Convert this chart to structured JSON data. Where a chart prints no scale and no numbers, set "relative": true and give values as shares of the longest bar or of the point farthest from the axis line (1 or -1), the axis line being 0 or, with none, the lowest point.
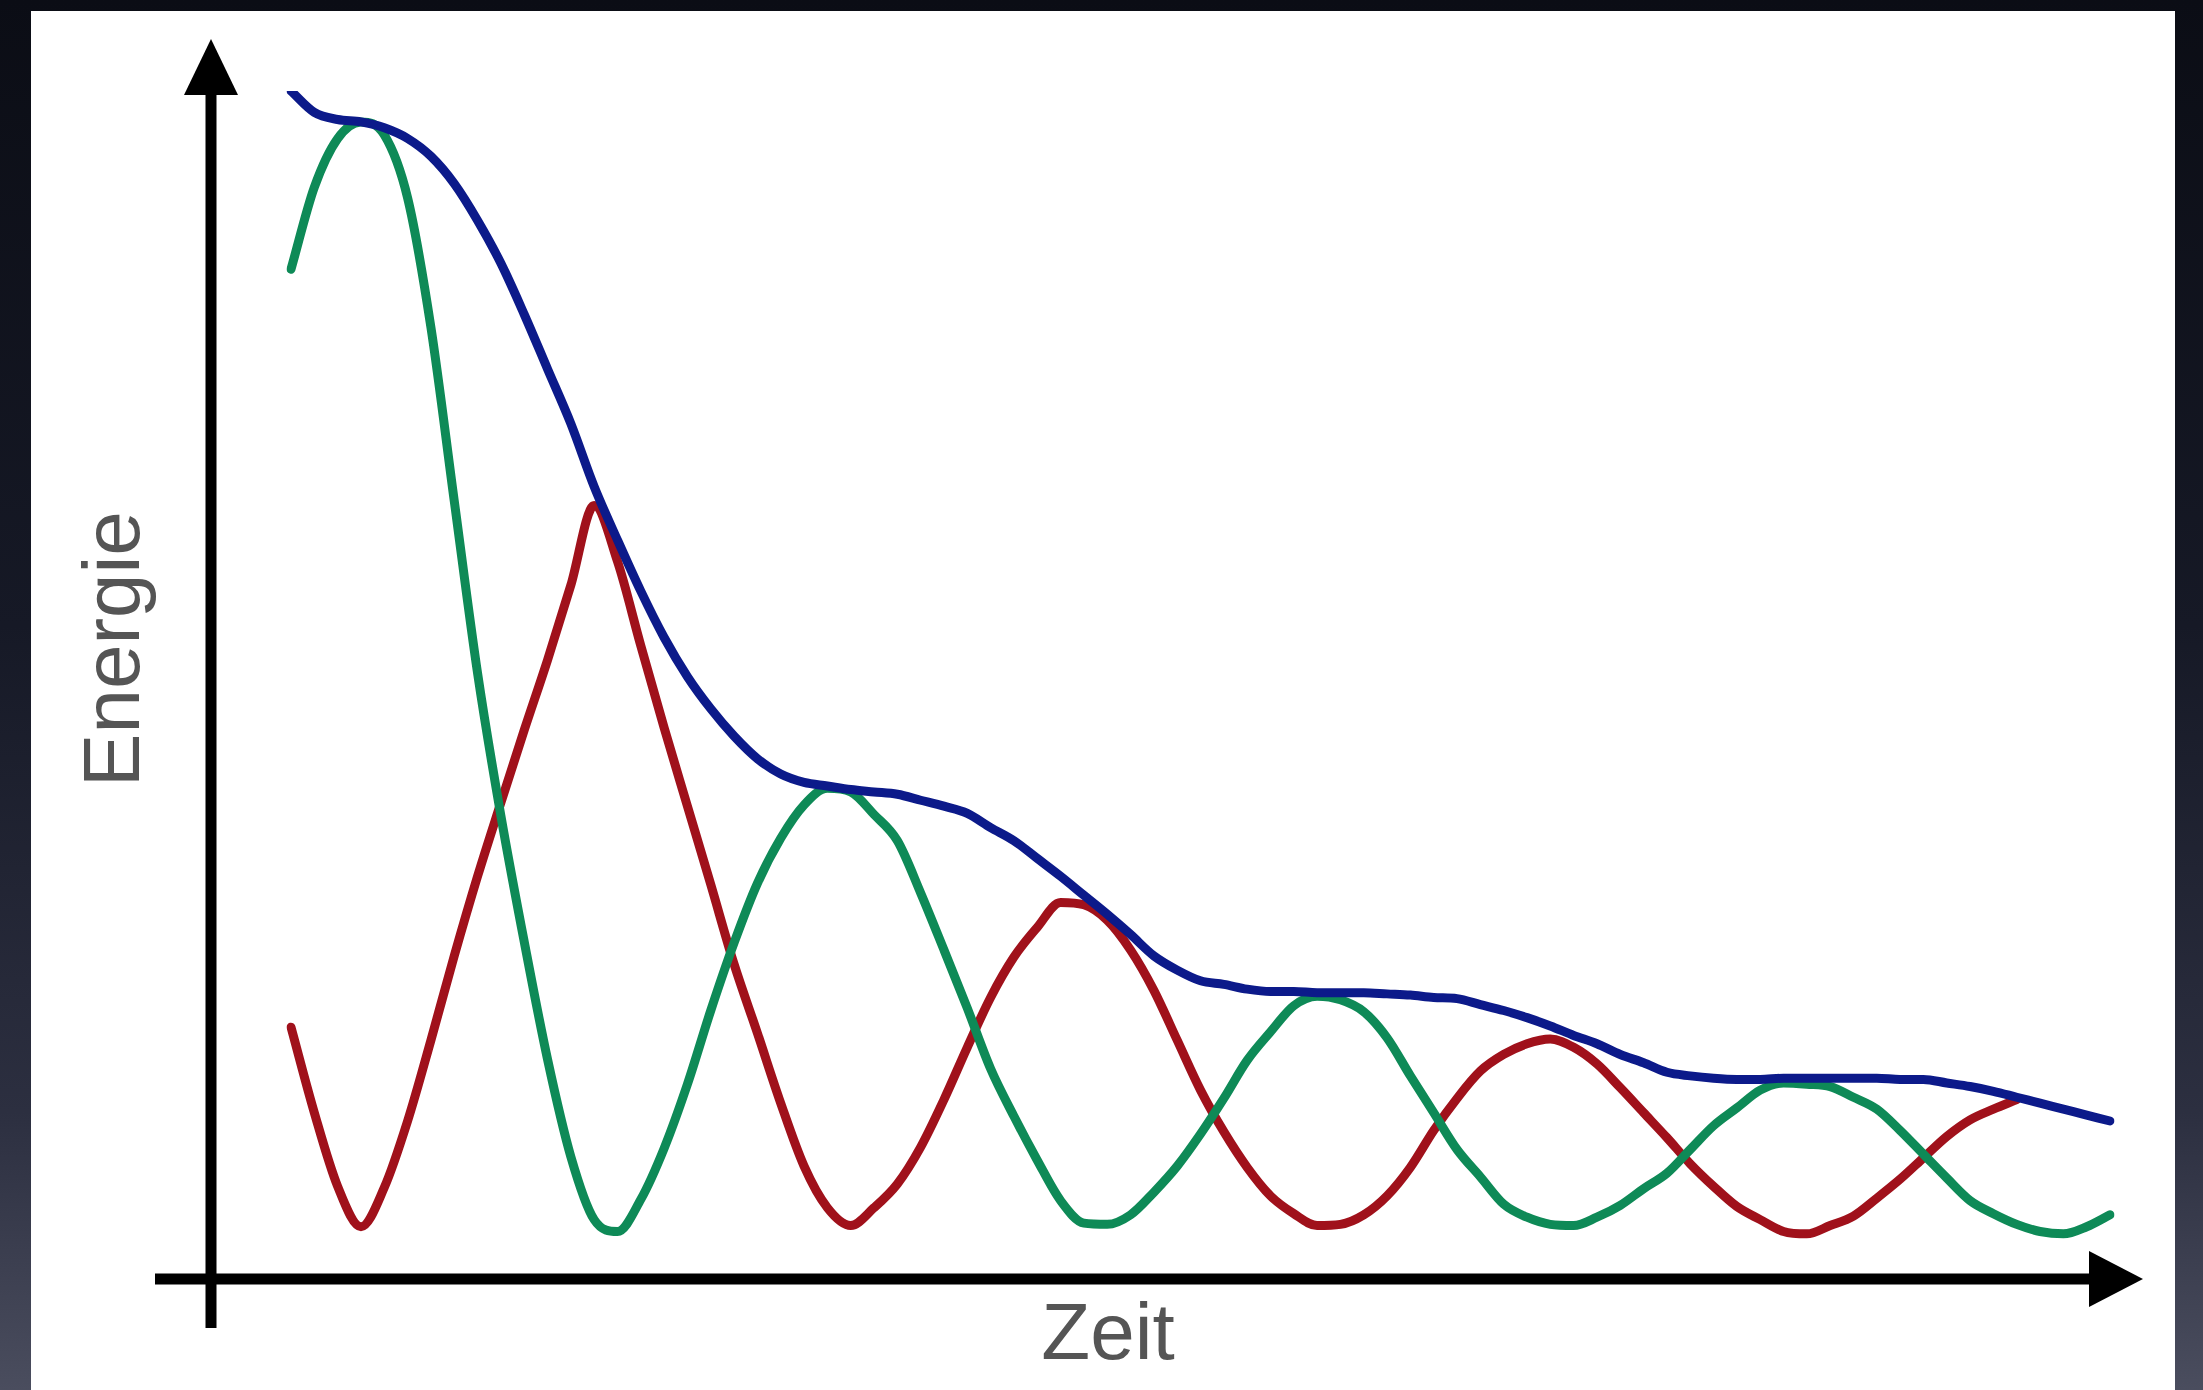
{
  "chart_data": {
    "type": "line",
    "relative": true,
    "marker": "none",
    "xlabel": "Zeit",
    "ylabel": "Energie",
    "categories": [
      null,
      null,
      null,
      null,
      null,
      null,
      null,
      null,
      null,
      null,
      null,
      null,
      null,
      null,
      null,
      null,
      null,
      null,
      null,
      null,
      null,
      null,
      null,
      null,
      null,
      null,
      null,
      null,
      null,
      null,
      null,
      null,
      null,
      null,
      null,
      null,
      null,
      null,
      null,
      null,
      null,
      null,
      null,
      null,
      null,
      null,
      null,
      null,
      null,
      null,
      null,
      null,
      null,
      null,
      null,
      null,
      null,
      null,
      null,
      null,
      null,
      null,
      null,
      null,
      null,
      null,
      null,
      null,
      null,
      null,
      null,
      null,
      null,
      null,
      null,
      null,
      null,
      null,
      null
    ],
    "series": [
      {
        "color": "#0c1a8a",
        "values": [
          1,
          0.982,
          0.976,
          0.974,
          0.969,
          0.96,
          0.945,
          0.922,
          0.891,
          0.855,
          0.812,
          0.766,
          0.72,
          0.667,
          0.622,
          0.579,
          0.54,
          0.507,
          0.48,
          0.457,
          0.438,
          0.425,
          0.418,
          0.415,
          0.412,
          0.41,
          0.408,
          0.403,
          0.398,
          0.392,
          0.38,
          0.369,
          0.354,
          0.339,
          0.323,
          0.307,
          0.29,
          0.272,
          0.26,
          0.251,
          0.248,
          0.244,
          0.242,
          0.242,
          0.241,
          0.241,
          0.241,
          0.24,
          0.239,
          0.237,
          0.236,
          0.231,
          0.226,
          0.22,
          0.213,
          0.205,
          0.198,
          0.189,
          0.182,
          0.174,
          0.171,
          0.169,
          0.168,
          0.168,
          0.169,
          0.169,
          0.169,
          0.169,
          0.169,
          0.168,
          0.168,
          0.165,
          0.162,
          0.158,
          0.153,
          0.148,
          0.143,
          0.138,
          0.133
        ]
      },
      {
        "color": "#0e8a57",
        "values": [
          0.85,
          0.919,
          0.96,
          0.974,
          0.963,
          0.91,
          0.801,
          0.655,
          0.51,
          0.39,
          0.284,
          0.185,
          0.103,
          0.05,
          0.04,
          0.067,
          0.11,
          0.164,
          0.226,
          0.283,
          0.333,
          0.371,
          0.399,
          0.413,
          0.41,
          0.391,
          0.369,
          0.325,
          0.277,
          0.228,
          0.177,
          0.137,
          0.1,
          0.066,
          0.047,
          0.046,
          0.054,
          0.073,
          0.095,
          0.122,
          0.152,
          0.184,
          0.208,
          0.23,
          0.238,
          0.235,
          0.225,
          0.203,
          0.171,
          0.14,
          0.109,
          0.086,
          0.063,
          0.052,
          0.046,
          0.045,
          0.052,
          0.062,
          0.076,
          0.089,
          0.109,
          0.129,
          0.144,
          0.159,
          0.165,
          0.164,
          0.162,
          0.153,
          0.143,
          0.125,
          0.105,
          0.085,
          0.066,
          0.055,
          0.046,
          0.04,
          0.038,
          0.044,
          0.054
        ]
      },
      {
        "color": "#a0111b",
        "values": [
          0.212,
          0.14,
          0.078,
          0.044,
          0.077,
          0.133,
          0.201,
          0.272,
          0.339,
          0.401,
          0.462,
          0.521,
          0.584,
          0.651,
          0.604,
          0.533,
          0.464,
          0.398,
          0.332,
          0.265,
          0.207,
          0.148,
          0.095,
          0.06,
          0.045,
          0.06,
          0.08,
          0.111,
          0.151,
          0.195,
          0.237,
          0.271,
          0.296,
          0.317,
          0.315,
          0.302,
          0.277,
          0.243,
          0.201,
          0.159,
          0.124,
          0.094,
          0.07,
          0.055,
          0.045,
          0.046,
          0.054,
          0.07,
          0.094,
          0.125,
          0.152,
          0.175,
          0.189,
          0.198,
          0.202,
          0.195,
          0.181,
          0.161,
          0.14,
          0.119,
          0.097,
          0.078,
          0.061,
          0.05,
          0.04,
          0.038,
          0.045,
          0.053,
          0.068,
          0.084,
          0.102,
          0.12,
          0.134,
          0.143,
          0.151,
          null,
          null,
          null,
          null
        ]
      }
    ]
  }
}
